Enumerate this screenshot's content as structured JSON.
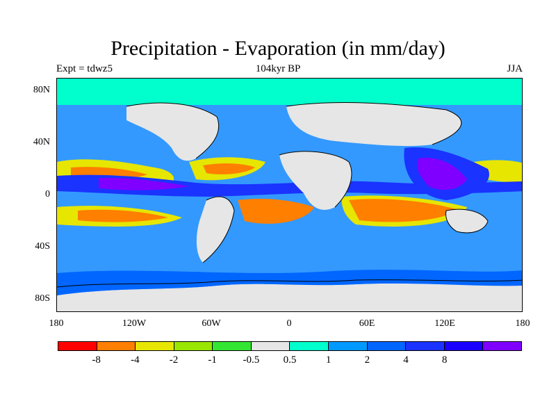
{
  "title": "Precipitation - Evaporation (in mm/day)",
  "subtitle_left": "Expt = tdwz5",
  "subtitle_center": "104kyr BP",
  "subtitle_right": "JJA",
  "colors": {
    "ocean_base": "#3399ff",
    "land_near_zero": "#e6e6e6",
    "coast": "#000000"
  },
  "map": {
    "projection": "cylindrical-equidistant",
    "lat_range": [
      -90,
      90
    ],
    "lon_range": [
      -180,
      180
    ],
    "lat_ticks": [
      "80N",
      "40N",
      "0",
      "40S",
      "80S"
    ],
    "lon_ticks": [
      "180",
      "120W",
      "60W",
      "0",
      "60E",
      "120E",
      "180"
    ]
  },
  "colorbar": {
    "colors": [
      "#ff0000",
      "#ff7f00",
      "#e6e600",
      "#99e600",
      "#33e633",
      "#e6e6e6",
      "#00ffcc",
      "#0099ff",
      "#0066ff",
      "#1a33ff",
      "#1a00ff",
      "#7f00ff"
    ],
    "labels": [
      "-8",
      "-4",
      "-2",
      "-1",
      "-0.5",
      "0.5",
      "1",
      "2",
      "4",
      "8"
    ]
  }
}
